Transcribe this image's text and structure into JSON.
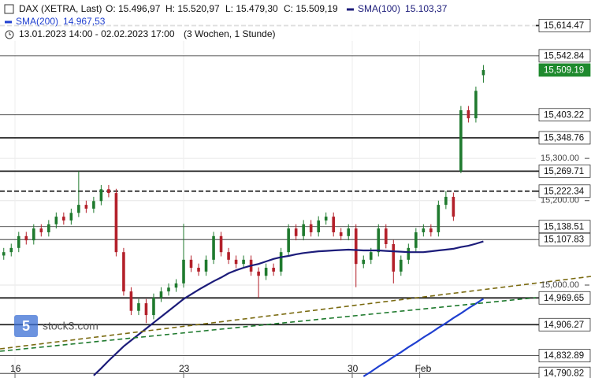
{
  "chart_data": {
    "type": "candlestick",
    "title": "DAX (XETRA, Last)",
    "ohlc_labels": [
      "O: 15.496,97",
      "H: 15.520,97",
      "L: 15.479,30",
      "C: 15.509,19"
    ],
    "range_text": "13.01.2023 14:00 - 02.02.2023 17:00",
    "range_note": "(3 Wochen, 1 Stunde)",
    "watermark": "stock3.com",
    "up_color": "#1f7a2e",
    "down_color": "#b3202a",
    "open": [
      15070,
      15078,
      15088,
      15116,
      15106,
      15134,
      15125,
      15144,
      15162,
      15153,
      15171,
      15190,
      15181,
      15199,
      15227,
      15218,
      15078,
      14985,
      14939,
      14957,
      14929,
      14970,
      14985,
      14994,
      15004,
      15060,
      15041,
      15032,
      15060,
      15116,
      15078,
      15060,
      15050,
      15060,
      15032,
      15022,
      15041,
      15032,
      15078,
      15134,
      15116,
      15144,
      15125,
      15153,
      15162,
      15125,
      15116,
      15134,
      15050,
      15060,
      15078,
      15134,
      15097,
      15032,
      15060,
      15088,
      15125,
      15134,
      15125,
      15190,
      15209,
      15270,
      15414,
      15395,
      15496.97
    ],
    "high": [
      15088,
      15098,
      15126,
      15126,
      15144,
      15144,
      15154,
      15172,
      15172,
      15181,
      15269.71,
      15200,
      15209,
      15237,
      15237,
      15228,
      15088,
      14995,
      14967,
      14967,
      14980,
      14995,
      15004,
      15014,
      15145,
      15070,
      15051,
      15070,
      15126,
      15126,
      15088,
      15070,
      15070,
      15070,
      15042,
      15051,
      15051,
      15088,
      15144,
      15144,
      15154,
      15154,
      15163,
      15172,
      15172,
      15135,
      15144,
      15144,
      15070,
      15088,
      15144,
      15144,
      15107,
      15070,
      15098,
      15135,
      15144,
      15144,
      15200,
      15222.34,
      15219,
      15424,
      15424,
      15470,
      15520.97
    ],
    "low": [
      15060,
      15068,
      15078,
      15096,
      15096,
      15115,
      15115,
      15134,
      15143,
      15143,
      15161,
      15171,
      15171,
      15189,
      15208,
      15068,
      14975,
      14929,
      14929,
      14910,
      14919,
      14960,
      14975,
      14984,
      14994,
      15031,
      15022,
      15022,
      15050,
      15068,
      15050,
      15040,
      15040,
      15022,
      14970,
      15012,
      15022,
      15022,
      15068,
      15106,
      15106,
      15115,
      15115,
      15143,
      15115,
      15106,
      15106,
      14995,
      15040,
      15050,
      15068,
      15087,
      15004,
      15022,
      15050,
      15078,
      15115,
      15115,
      15115,
      15180,
      15152,
      15265,
      15385,
      15385,
      15479.3
    ],
    "close": [
      15078,
      15088,
      15116,
      15106,
      15134,
      15125,
      15144,
      15162,
      15153,
      15171,
      15190,
      15181,
      15199,
      15227,
      15218,
      15078,
      14985,
      14939,
      14957,
      14929,
      14970,
      14985,
      14994,
      15004,
      15060,
      15041,
      15032,
      15060,
      15116,
      15078,
      15060,
      15050,
      15060,
      15032,
      15022,
      15041,
      15032,
      15078,
      15134,
      15116,
      15144,
      15125,
      15153,
      15162,
      15125,
      15116,
      15134,
      15050,
      15060,
      15078,
      15134,
      15097,
      15032,
      15060,
      15088,
      15125,
      15134,
      15125,
      15190,
      15209,
      15162,
      15414,
      15395,
      15460,
      15509.19
    ],
    "series": [
      {
        "name": "SMA(100)",
        "color": "#1c1c7a",
        "last_label": "15.103,37",
        "values": [
          null,
          null,
          null,
          null,
          null,
          null,
          null,
          null,
          null,
          null,
          null,
          null,
          14786,
          14803,
          14821,
          14838,
          14855,
          14869,
          14883,
          14897,
          14911,
          14925,
          14939,
          14953,
          14967,
          14978,
          14989,
          14999,
          15009,
          15018,
          15028,
          15035,
          15041,
          15046,
          15050,
          15056,
          15062,
          15066,
          15069,
          15073,
          15076,
          15078,
          15080,
          15081,
          15082,
          15083,
          15084,
          15083,
          15082,
          15082,
          15082,
          15081,
          15080,
          15079,
          15078,
          15078,
          15078,
          15080,
          15082,
          15084,
          15086,
          15090,
          15093,
          15098,
          15103.37
        ]
      },
      {
        "name": "SMA(200)",
        "color": "#1f3fd0",
        "last_label": "14.967,53",
        "values": [
          null,
          null,
          null,
          null,
          null,
          null,
          null,
          null,
          null,
          null,
          null,
          null,
          null,
          null,
          null,
          null,
          null,
          null,
          null,
          null,
          null,
          null,
          null,
          null,
          null,
          null,
          null,
          null,
          null,
          null,
          null,
          null,
          null,
          null,
          null,
          null,
          null,
          null,
          null,
          null,
          null,
          null,
          null,
          null,
          null,
          null,
          null,
          null,
          14784,
          14795,
          14807,
          14818,
          14830,
          14841,
          14853,
          14864,
          14876,
          14887,
          14899,
          14910,
          14922,
          14933,
          14945,
          14956,
          14967.53
        ]
      }
    ],
    "xlim": [
      -0.5,
      71
    ],
    "xticks": [
      {
        "value": 1.5,
        "label": "16"
      },
      {
        "value": 24,
        "label": "23"
      },
      {
        "value": 46.5,
        "label": "30"
      },
      {
        "value": 55.5,
        "label": "Feb"
      }
    ],
    "ylim": [
      14780,
      15675
    ],
    "yticks": [
      {
        "value": 15300,
        "label": "15,300.00"
      },
      {
        "value": 15200,
        "label": "15,200.00"
      },
      {
        "value": 15000,
        "label": "15,000.00"
      }
    ],
    "grid": true,
    "levels": [
      {
        "value": 15614.47,
        "label": "15,614.47",
        "style": "dashed"
      },
      {
        "value": 15542.84,
        "label": "15,542.84",
        "style": "solid"
      },
      {
        "value": 15509.19,
        "label": "15,509.19",
        "style": "price"
      },
      {
        "value": 15403.22,
        "label": "15,403.22",
        "style": "solid"
      },
      {
        "value": 15348.76,
        "label": "15,348.76",
        "style": "thick"
      },
      {
        "value": 15269.71,
        "label": "15,269.71",
        "style": "thick"
      },
      {
        "value": 15222.34,
        "label": "15,222.34",
        "style": "dashed"
      },
      {
        "value": 15138.51,
        "label": "15,138.51",
        "style": "solid"
      },
      {
        "value": 15107.83,
        "label": "15,107.83",
        "style": "solid"
      },
      {
        "value": 14969.65,
        "label": "14,969.65",
        "style": "thick"
      },
      {
        "value": 14906.27,
        "label": "14,906.27",
        "style": "thick"
      },
      {
        "value": 14832.89,
        "label": "14,832.89",
        "style": "solid"
      },
      {
        "value": 14790.82,
        "label": "14,790.82",
        "style": "solid"
      }
    ]
  }
}
